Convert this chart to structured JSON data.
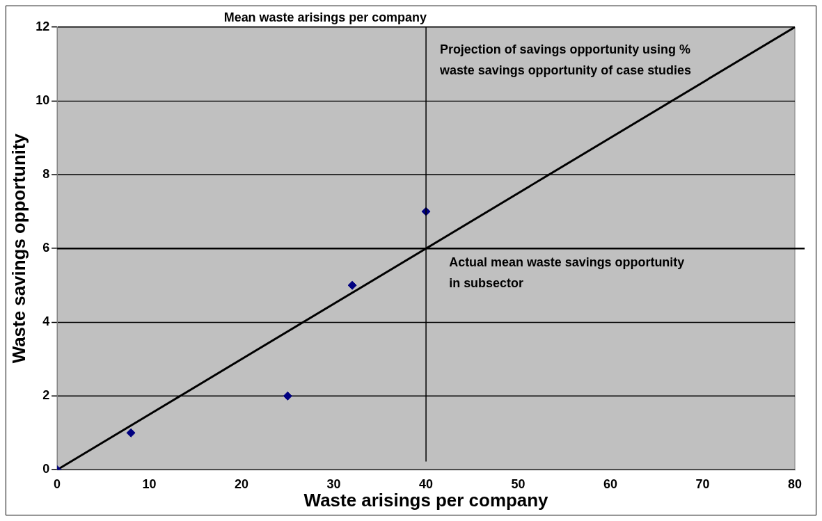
{
  "chart_data": {
    "type": "scatter",
    "xlabel": "Waste arisings per company",
    "ylabel": "Waste savings opportunity",
    "series": [
      {
        "color": "#000080",
        "x": [
          0,
          8,
          25,
          32,
          40
        ],
        "values": [
          0,
          1,
          2,
          5,
          7
        ],
        "marker": "diamond"
      },
      {
        "type": "line",
        "color": "#000000",
        "x": [
          0,
          80
        ],
        "values": [
          0,
          12
        ],
        "marker": "none",
        "line_style": "solid"
      }
    ],
    "xlim": [
      0,
      80
    ],
    "xticks": [
      0,
      10,
      20,
      30,
      40,
      50,
      60,
      70,
      80
    ],
    "ylim": [
      0,
      12
    ],
    "yticks": [
      0,
      2,
      4,
      6,
      8,
      10,
      12
    ],
    "grid": "y",
    "legend": false,
    "ref_lines": [
      {
        "axis": "x",
        "value": 40,
        "label": "Mean waste arisings per company",
        "color": "#000000"
      },
      {
        "axis": "y",
        "value": 6,
        "label": "Actual mean waste savings opportunity in subsector",
        "color": "#000000"
      }
    ],
    "annotations": [
      "Projection of savings opportunity using % waste savings opportunity of case studies"
    ]
  }
}
